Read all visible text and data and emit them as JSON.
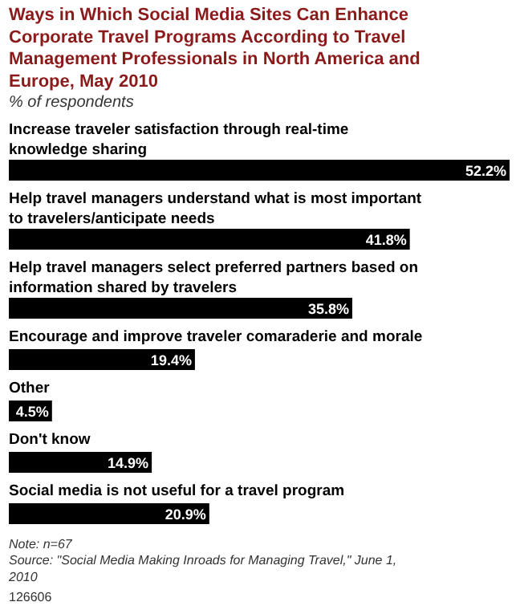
{
  "chart_data": {
    "type": "bar",
    "orientation": "horizontal",
    "title": "Ways in Which Social Media Sites Can Enhance Corporate Travel Programs According to Travel Management Professionals in North America and Europe, May 2010",
    "subtitle": "% of respondents",
    "categories": [
      "Increase traveler satisfaction through real-time knowledge sharing",
      "Help travel managers understand what is most important to travelers/anticipate needs",
      "Help travel managers select preferred partners based on information shared by travelers",
      "Encourage and improve traveler comaraderie and morale",
      "Other",
      "Don't know",
      "Social media is not useful for a travel program"
    ],
    "values": [
      52.2,
      41.8,
      35.8,
      19.4,
      4.5,
      14.9,
      20.9
    ],
    "color": "#000000",
    "value_labels": [
      "52.2%",
      "41.8%",
      "35.8%",
      "19.4%",
      "4.5%",
      "14.9%",
      "20.9%"
    ],
    "annotations": [
      "Note: n=67",
      "Source: \"Social Media Making Inroads for Managing Travel,\" June 1, 2010",
      "126606"
    ]
  }
}
